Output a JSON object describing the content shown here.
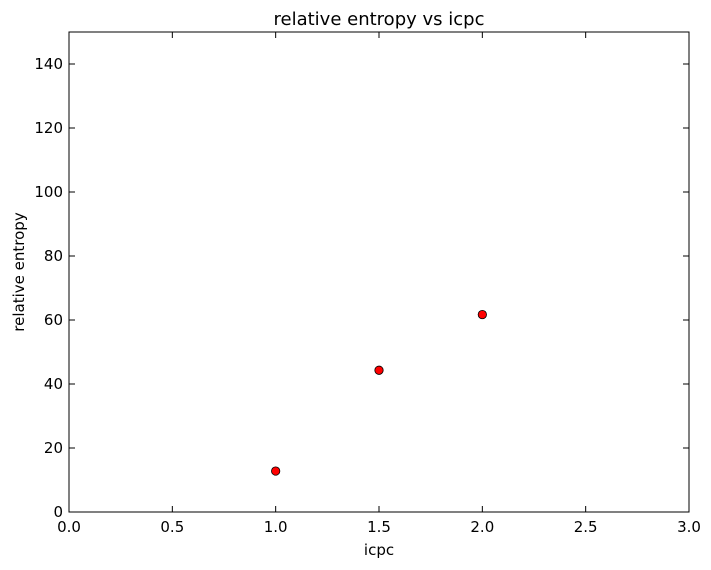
{
  "chart_data": {
    "type": "scatter",
    "title": "relative entropy vs icpc",
    "xlabel": "icpc",
    "ylabel": "relative entropy",
    "xlim": [
      0,
      3.0
    ],
    "ylim": [
      0,
      150
    ],
    "x_ticks": [
      0.0,
      0.5,
      1.0,
      1.5,
      2.0,
      2.5,
      3.0
    ],
    "x_tick_labels": [
      "0.0",
      "0.5",
      "1.0",
      "1.5",
      "2.0",
      "2.5",
      "3.0"
    ],
    "y_ticks": [
      0,
      20,
      40,
      60,
      80,
      100,
      120,
      140
    ],
    "y_tick_labels": [
      "0",
      "20",
      "40",
      "60",
      "80",
      "100",
      "120",
      "140"
    ],
    "grid": false,
    "points": [
      {
        "x": 1.0,
        "y": 12.8
      },
      {
        "x": 1.5,
        "y": 44.3
      },
      {
        "x": 2.0,
        "y": 61.7
      }
    ],
    "marker_color": "#ff0000",
    "marker_edge_color": "#000000"
  }
}
